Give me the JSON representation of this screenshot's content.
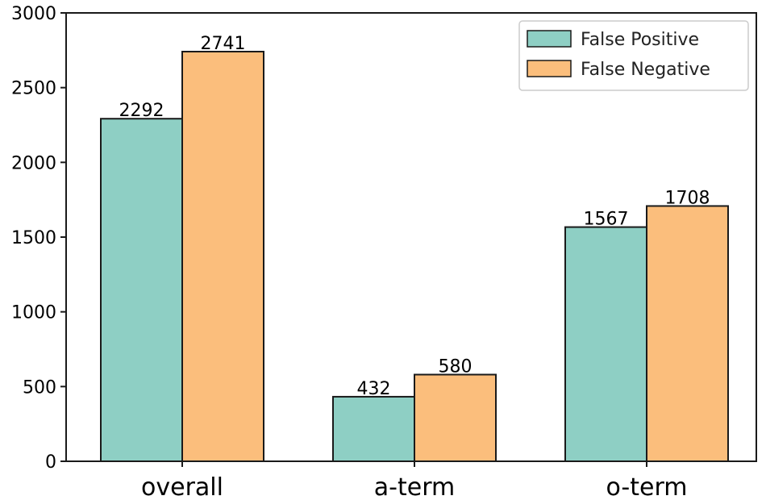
{
  "chart_data": {
    "type": "bar",
    "categories": [
      "overall",
      "a-term",
      "o-term"
    ],
    "series": [
      {
        "name": "False Positive",
        "values": [
          2292,
          432,
          1567
        ],
        "color": "#8ecfc4"
      },
      {
        "name": "False Negative",
        "values": [
          2741,
          580,
          1708
        ],
        "color": "#fbbe7c"
      }
    ],
    "ylim": [
      0,
      3000
    ],
    "yticks": [
      0,
      500,
      1000,
      1500,
      2000,
      2500,
      3000
    ],
    "grid": false,
    "legend_position": "top-right",
    "edge_color": "#1a1a1a"
  }
}
